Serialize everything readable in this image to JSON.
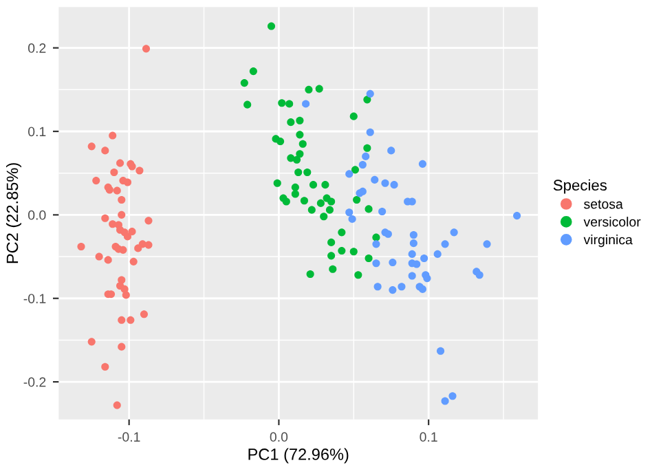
{
  "chart_data": {
    "type": "scatter",
    "xlabel": "PC1 (72.96%)",
    "ylabel": "PC2 (22.85%)",
    "legend_title": "Species",
    "legend": "right",
    "grid": true,
    "marker": "circle",
    "xlim": [
      -0.147,
      0.173
    ],
    "ylim": [
      -0.245,
      0.249
    ],
    "xticks": [
      {
        "value": -0.1,
        "label": "-0.1"
      },
      {
        "value": 0,
        "label": "0.0"
      },
      {
        "value": 0.1,
        "label": "0.1"
      }
    ],
    "yticks": [
      {
        "value": -0.2,
        "label": "-0.2"
      },
      {
        "value": -0.1,
        "label": "-0.1"
      },
      {
        "value": 0,
        "label": "0.0"
      },
      {
        "value": 0.1,
        "label": "0.1"
      },
      {
        "value": 0.2,
        "label": "0.2"
      }
    ],
    "series": [
      {
        "name": "setosa",
        "color": "#f8766d",
        "x": [
          -0.0886,
          -0.111,
          -0.125,
          -0.116,
          -0.106,
          -0.099,
          -0.098,
          -0.093,
          -0.11,
          -0.122,
          -0.104,
          -0.101,
          -0.114,
          -0.113,
          -0.108,
          -0.105,
          -0.105,
          -0.116,
          -0.087,
          -0.111,
          -0.107,
          -0.106,
          -0.103,
          -0.101,
          -0.098,
          -0.132,
          -0.109,
          -0.107,
          -0.104,
          -0.094,
          -0.091,
          -0.087,
          -0.12,
          -0.114,
          -0.097,
          -0.105,
          -0.106,
          -0.103,
          -0.102,
          -0.114,
          -0.112,
          -0.09,
          -0.105,
          -0.099,
          -0.125,
          -0.105,
          -0.116,
          -0.108
        ],
        "values": [
          0.199,
          0.095,
          0.082,
          0.077,
          0.062,
          0.061,
          0.058,
          0.053,
          0.051,
          0.041,
          0.041,
          0.039,
          0.033,
          0.03,
          0.029,
          0.018,
          0.0,
          -0.004,
          -0.007,
          -0.011,
          -0.012,
          -0.018,
          -0.021,
          -0.026,
          -0.02,
          -0.038,
          -0.038,
          -0.041,
          -0.042,
          -0.04,
          -0.035,
          -0.036,
          -0.05,
          -0.054,
          -0.056,
          -0.078,
          -0.085,
          -0.089,
          -0.096,
          -0.095,
          -0.095,
          -0.119,
          -0.126,
          -0.126,
          -0.152,
          -0.158,
          -0.182,
          -0.228
        ]
      },
      {
        "name": "versicolor",
        "color": "#00ba38",
        "x": [
          -0.005,
          -0.017,
          -0.023,
          -0.021,
          0.02,
          0.027,
          0.002,
          0.007,
          0.008,
          0.014,
          0.014,
          -0.002,
          0.001,
          0.016,
          0.014,
          0.008,
          0.012,
          0.059,
          0.05,
          0.059,
          0.013,
          0.019,
          0.051,
          -0.001,
          0.011,
          0.023,
          0.031,
          0.011,
          0.003,
          0.005,
          0.017,
          0.028,
          0.032,
          0.035,
          0.052,
          0.022,
          0.034,
          0.03,
          0.06,
          0.042,
          0.065,
          0.035,
          0.042,
          0.05,
          0.035,
          0.06,
          0.036,
          0.021,
          0.053
        ],
        "values": [
          0.226,
          0.172,
          0.158,
          0.132,
          0.15,
          0.151,
          0.134,
          0.133,
          0.111,
          0.113,
          0.096,
          0.091,
          0.088,
          0.085,
          0.073,
          0.068,
          0.066,
          0.08,
          0.118,
          0.138,
          0.051,
          0.051,
          0.054,
          0.038,
          0.033,
          0.036,
          0.036,
          0.025,
          0.02,
          0.016,
          0.017,
          0.014,
          0.02,
          0.016,
          0.018,
          0.006,
          0.006,
          -0.002,
          0.007,
          -0.021,
          -0.027,
          -0.033,
          -0.043,
          -0.044,
          -0.049,
          -0.052,
          -0.065,
          -0.071,
          -0.072
        ]
      },
      {
        "name": "virginica",
        "color": "#619cff",
        "x": [
          0.018,
          0.061,
          0.061,
          0.075,
          0.058,
          0.056,
          0.047,
          0.096,
          0.064,
          0.071,
          0.077,
          0.054,
          0.056,
          0.086,
          0.089,
          0.047,
          0.049,
          0.069,
          0.159,
          0.071,
          0.073,
          0.117,
          0.09,
          0.09,
          0.065,
          0.111,
          0.139,
          0.089,
          0.106,
          0.065,
          0.076,
          0.089,
          0.092,
          0.097,
          0.132,
          0.134,
          0.089,
          0.098,
          0.099,
          0.066,
          0.076,
          0.082,
          0.094,
          0.096,
          0.108,
          0.116,
          0.111
        ],
        "values": [
          0.133,
          0.145,
          0.099,
          0.077,
          0.07,
          0.06,
          0.049,
          0.061,
          0.042,
          0.038,
          0.036,
          0.026,
          0.028,
          0.016,
          0.016,
          0.003,
          -0.005,
          0.004,
          -0.001,
          -0.021,
          -0.023,
          -0.021,
          -0.024,
          -0.034,
          -0.035,
          -0.035,
          -0.035,
          -0.047,
          -0.047,
          -0.058,
          -0.057,
          -0.058,
          -0.059,
          -0.052,
          -0.068,
          -0.072,
          -0.073,
          -0.072,
          -0.076,
          -0.086,
          -0.09,
          -0.086,
          -0.086,
          -0.089,
          -0.163,
          -0.217,
          -0.223
        ]
      }
    ]
  }
}
